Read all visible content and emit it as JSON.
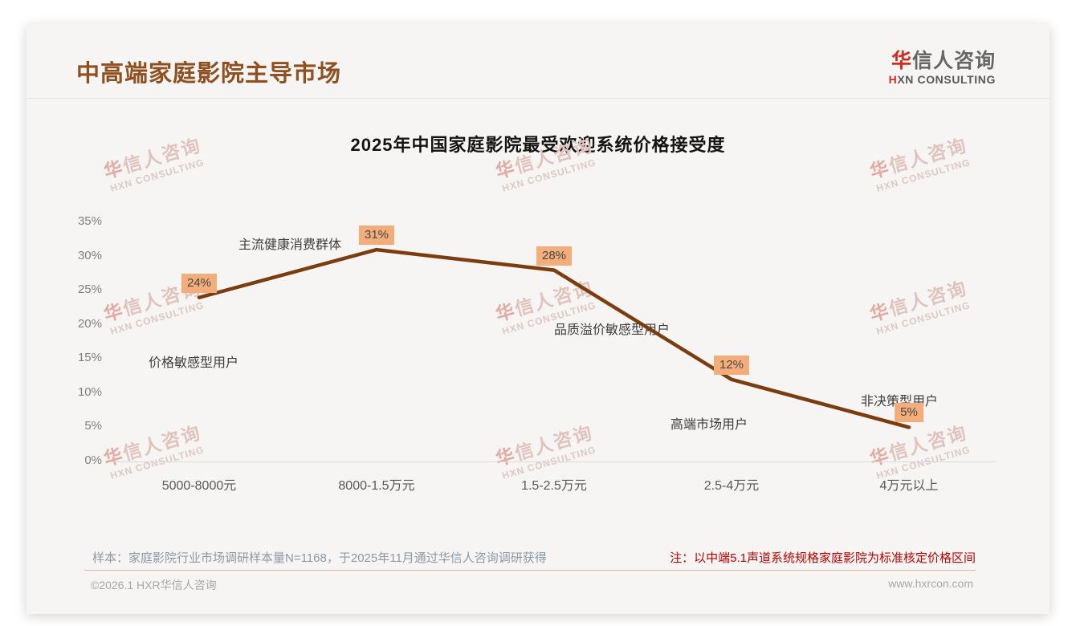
{
  "header": {
    "title": "中高端家庭影院主导市场",
    "logo": {
      "cn_first": "华",
      "cn_rest": "信人咨询",
      "en_first": "H",
      "en_rest": "XN CONSULTING"
    }
  },
  "chart_data": {
    "type": "line",
    "title": "2025年中国家庭影院最受欢迎系统价格接受度",
    "categories": [
      "5000-8000元",
      "8000-1.5万元",
      "1.5-2.5万元",
      "2.5-4万元",
      "4万元以上"
    ],
    "values": [
      24,
      31,
      28,
      12,
      5
    ],
    "value_labels": [
      "24%",
      "31%",
      "28%",
      "12%",
      "5%"
    ],
    "annotations": [
      "价格敏感型用户",
      "主流健康消费群体",
      "品质溢价敏感型用户",
      "高端市场用户",
      "非决策型用户"
    ],
    "xlabel": "",
    "ylabel": "",
    "ylim": [
      0,
      35
    ],
    "ytick_step": 5,
    "yticks": [
      "0%",
      "5%",
      "10%",
      "15%",
      "20%",
      "25%",
      "30%",
      "35%"
    ],
    "grid": false,
    "legend": false,
    "line_color": "#7c3d0e",
    "point_label_bg": "#f2ad7a"
  },
  "watermark": {
    "line1": "华信人咨询",
    "line2": "HXN CONSULTING"
  },
  "notes": {
    "sample": "样本：家庭影院行业市场调研样本量N=1168，于2025年11月通过华信人咨询调研获得",
    "standard": "注：以中端5.1声道系统规格家庭影院为标准核定价格区间"
  },
  "footer": {
    "copyright": "©2026.1 HXR华信人咨询",
    "website": "www.hxrcon.com"
  },
  "colors": {
    "title_brown": "#8f4f1e",
    "line_brown": "#7c3d0e",
    "label_bg": "#f2ad7a",
    "note_red": "#c00000",
    "logo_red": "#d22b20"
  }
}
